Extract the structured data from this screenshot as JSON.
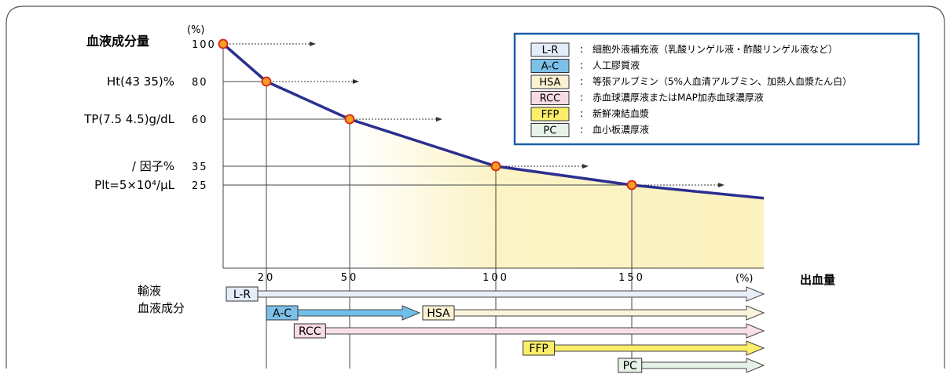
{
  "chart_data": {
    "type": "line",
    "title": "血液成分量",
    "y_unit": "(%)",
    "x_title": "出血量",
    "x_unit": "(%)",
    "x_ticks": [
      "20",
      "50",
      "100",
      "150"
    ],
    "y_ticks": [
      "100",
      "80",
      "60",
      "35",
      "25"
    ],
    "y_labels": [
      {
        "text": "Ht(43 35)%",
        "y": 80
      },
      {
        "text": "TP(7.5 4.5)g/dL",
        "y": 60
      },
      {
        "text": "/ 因子%",
        "y": 35
      },
      {
        "text": "Plt=5×10⁴/µL",
        "y": 25
      }
    ],
    "series": [
      {
        "x": [
          0,
          20,
          50,
          100,
          150,
          185
        ],
        "y": [
          100,
          80,
          60,
          35,
          25,
          18
        ]
      }
    ],
    "shaded_region_from_x": 50,
    "line_color": "#2b2f8f",
    "marker_color": "#f4a020",
    "marker_outline": "#d8201a",
    "fill_color": "#fbf2bf"
  },
  "left_labels": {
    "line1": "輸液",
    "line2": "血液成分"
  },
  "therapies": [
    {
      "code": "L-R",
      "start": 0,
      "box_color": "#e3ecf9",
      "arrow_color": "#e8eef9"
    },
    {
      "code": "A-C",
      "start": 20,
      "box_color": "#7cc0e8",
      "arrow_color": "#6fbfea",
      "arrow_to": "HSA"
    },
    {
      "code": "HSA",
      "start": 75,
      "box_color": "#fbf2d3",
      "arrow_color": "#fbf4dc"
    },
    {
      "code": "RCC",
      "start": 30,
      "box_color": "#f7dbe2",
      "arrow_color": "#f8e1e6"
    },
    {
      "code": "FFP",
      "start": 110,
      "box_color": "#fbee6a",
      "arrow_color": "#fbee6a"
    },
    {
      "code": "PC",
      "start": 145,
      "box_color": "#e7f2e8",
      "arrow_color": "#e6f2e7"
    }
  ],
  "legend": [
    {
      "code": "L-R",
      "desc": "細胞外液補充液（乳酸リンゲル液・酢酸リンゲル液など）",
      "color": "#e3ecf9"
    },
    {
      "code": "A-C",
      "desc": "人工膠質液",
      "color": "#7cc0e8"
    },
    {
      "code": "HSA",
      "desc": "等張アルブミン（5%人血清アルブミン、加熱人血漿たん白）",
      "color": "#fbf2d3"
    },
    {
      "code": "RCC",
      "desc": "赤血球濃厚液またはMAP加赤血球濃厚液",
      "color": "#f7dbe2"
    },
    {
      "code": "FFP",
      "desc": "新鮮凍結血漿",
      "color": "#fbee6a"
    },
    {
      "code": "PC",
      "desc": "血小板濃厚液",
      "color": "#e7f2e8"
    }
  ],
  "legend_separator": ":",
  "legend_border_color": "#1c5fa8"
}
